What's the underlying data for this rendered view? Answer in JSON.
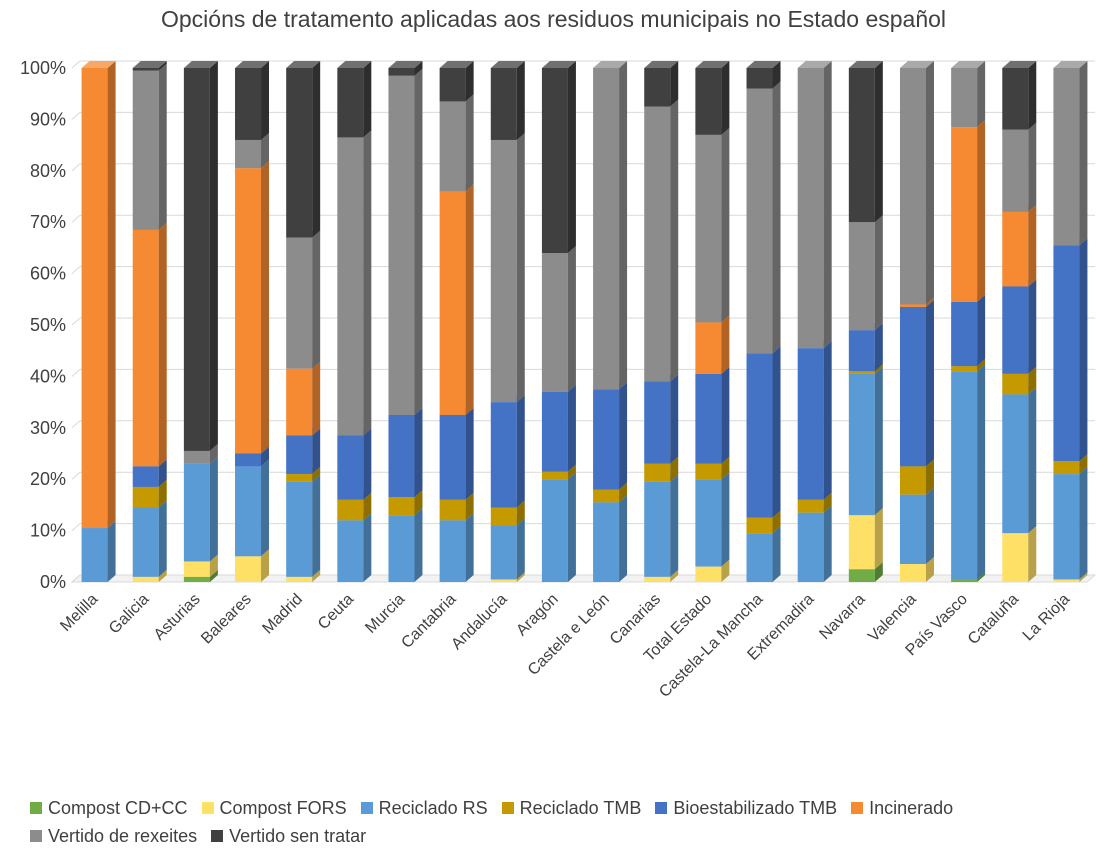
{
  "chart_data": {
    "type": "bar",
    "stacked": true,
    "percent": true,
    "style": "3d-column",
    "title": "Opcións de tratamento aplicadas aos residuos municipais no Estado español",
    "xlabel": "",
    "ylabel": "",
    "ylim": [
      0,
      100
    ],
    "yticks": [
      "0%",
      "10%",
      "20%",
      "30%",
      "40%",
      "50%",
      "60%",
      "70%",
      "80%",
      "90%",
      "100%"
    ],
    "grid": true,
    "legend_position": "bottom",
    "categories": [
      "Melilla",
      "Galicia",
      "Asturias",
      "Baleares",
      "Madrid",
      "Ceuta",
      "Murcia",
      "Cantabria",
      "Andalucía",
      "Aragón",
      "Castela e León",
      "Canarias",
      "Total Estado",
      "Castela-La Mancha",
      "Extremadira",
      "Navarra",
      "Valencia",
      "País Vasco",
      "Cataluña",
      "La Rioja"
    ],
    "series": [
      {
        "name": "Compost CD+CC",
        "color": "#70ad47",
        "values": [
          0,
          0,
          1,
          0,
          0,
          0,
          0,
          0,
          0,
          0,
          0,
          0,
          0,
          0,
          0,
          2.5,
          0,
          0.5,
          0,
          0
        ]
      },
      {
        "name": "Compost FORS",
        "color": "#ffe066",
        "values": [
          0,
          1,
          3,
          5,
          1,
          0,
          0,
          0,
          0.5,
          0,
          0,
          1,
          3,
          0,
          0,
          10.5,
          3.5,
          0,
          9.5,
          0.5
        ]
      },
      {
        "name": "Reciclado RS",
        "color": "#5b9bd5",
        "values": [
          10.5,
          13.5,
          19,
          17.5,
          18.5,
          12,
          13,
          12,
          10.5,
          20,
          15.5,
          18.5,
          17,
          9.5,
          13.5,
          27.5,
          13.5,
          40.5,
          27,
          20.5
        ]
      },
      {
        "name": "Reciclado TMB",
        "color": "#c49a00",
        "values": [
          0,
          4,
          0,
          0,
          1.5,
          4,
          3.5,
          4,
          3.5,
          1.5,
          2.5,
          3.5,
          3,
          3,
          2.5,
          0.5,
          5.5,
          1,
          4,
          2.5
        ]
      },
      {
        "name": "Bioestabilizado TMB",
        "color": "#4472c4",
        "values": [
          0,
          4,
          0,
          2.5,
          7.5,
          12.5,
          16,
          16.5,
          20.5,
          15.5,
          19.5,
          16,
          17.5,
          32,
          29.5,
          8,
          31,
          12.5,
          17,
          42
        ]
      },
      {
        "name": "Incinerado",
        "color": "#f58a33",
        "values": [
          89.5,
          46,
          0,
          55.5,
          13,
          0,
          0,
          43.5,
          0,
          0,
          0,
          0,
          10,
          0,
          0,
          0,
          0.5,
          34,
          14.5,
          0
        ]
      },
      {
        "name": "Vertido de rexeites",
        "color": "#8c8c8c",
        "values": [
          0,
          31,
          2.5,
          5.5,
          25.5,
          58,
          66,
          17.5,
          51,
          27,
          62.5,
          53.5,
          36.5,
          51.5,
          54.5,
          21,
          46,
          11.5,
          16,
          34.5
        ]
      },
      {
        "name": "Vertido sen tratar",
        "color": "#404040",
        "values": [
          0,
          0.5,
          74.5,
          14,
          33,
          13.5,
          1.5,
          6.5,
          14,
          36,
          0,
          7.5,
          13,
          4,
          0,
          30,
          0,
          0,
          12,
          0
        ]
      }
    ]
  }
}
